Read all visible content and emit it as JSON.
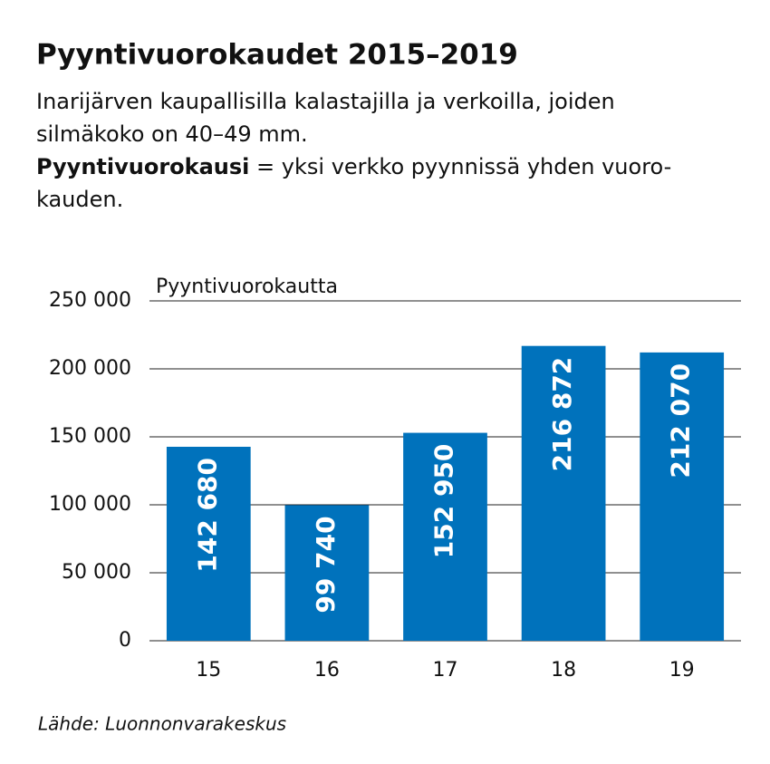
{
  "chart_data": {
    "type": "bar",
    "title": "Pyyntivuorokaudet 2015–2019",
    "subtitle_lines": [
      "Inarijärven kaupallisilla kalastajilla ja verkoilla, joiden",
      "silmäkoko on 40–49 mm."
    ],
    "definition": {
      "term": "Pyyntivuorokausi",
      "lines": [
        "= yksi verkko pyynnissä yhden vuoro-",
        "kauden."
      ]
    },
    "y_label": "Pyyntivuorokautta",
    "categories": [
      "15",
      "16",
      "17",
      "18",
      "19"
    ],
    "values": [
      142680,
      99740,
      152950,
      216872,
      212070
    ],
    "value_labels": [
      "142 680",
      "99 740",
      "152 950",
      "216 872",
      "212 070"
    ],
    "color": "#0072bc",
    "ylim": [
      0,
      250000
    ],
    "yticks": [
      0,
      {
        "value": 50000,
        "label": "50 000"
      },
      {
        "value": 100000,
        "label": "100 000"
      },
      {
        "value": 150000,
        "label": "150 000"
      },
      {
        "value": 200000,
        "label": "200 000"
      },
      {
        "value": 250000,
        "label": "250 000"
      }
    ],
    "grid": true,
    "source": "Lähde: Luonnonvarakeskus"
  }
}
